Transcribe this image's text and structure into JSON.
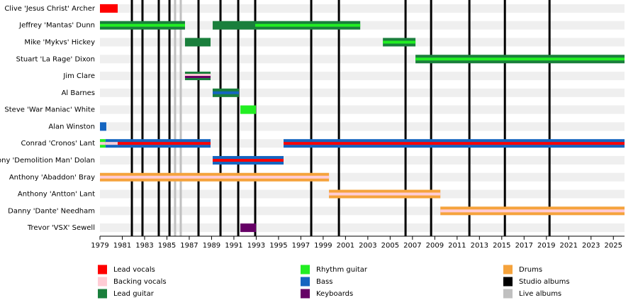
{
  "chart_data": {
    "type": "timeline",
    "xlim": [
      1979,
      2026
    ],
    "xticks": [
      1979,
      1981,
      1983,
      1985,
      1987,
      1989,
      1991,
      1993,
      1995,
      1997,
      1999,
      2001,
      2003,
      2005,
      2007,
      2009,
      2011,
      2013,
      2015,
      2017,
      2019,
      2021,
      2023,
      2025
    ],
    "roles": [
      {
        "name": "Lead vocals",
        "color": "#ff0000"
      },
      {
        "name": "Backing vocals",
        "color": "#ffccd5"
      },
      {
        "name": "Lead guitar",
        "color": "#1a7f3c"
      },
      {
        "name": "Rhythm guitar",
        "color": "#22ee22"
      },
      {
        "name": "Bass",
        "color": "#1565c0"
      },
      {
        "name": "Keyboards",
        "color": "#660066"
      },
      {
        "name": "Drums",
        "color": "#f5a33c"
      }
    ],
    "albums": [
      {
        "name": "Studio albums",
        "color": "#000000",
        "years": [
          1981.86,
          1982.81,
          1984.27,
          1985.23,
          1987.83,
          1989.8,
          1991.39,
          1992.91,
          1997.93,
          2000.41,
          2006.38,
          2008.67,
          2012.1,
          2015.28,
          2019.28
        ]
      },
      {
        "name": "Live albums",
        "color": "#c0c0c0",
        "years": [
          1985.73,
          1986.24
        ]
      }
    ],
    "members": [
      {
        "name": "Clive 'Jesus Christ' Archer",
        "periods": [
          {
            "start": 1979,
            "end": 1980.59,
            "roles": [
              "Lead vocals"
            ]
          }
        ]
      },
      {
        "name": "Jeffrey 'Mantas' Dunn",
        "periods": [
          {
            "start": 1979,
            "end": 1986.62,
            "roles": [
              "Lead guitar",
              "Rhythm guitar"
            ]
          },
          {
            "start": 1989.1,
            "end": 1992.91,
            "roles": [
              "Lead guitar"
            ]
          },
          {
            "start": 1992.91,
            "end": 2002.32,
            "roles": [
              "Lead guitar",
              "Rhythm guitar"
            ]
          }
        ]
      },
      {
        "name": "Mike 'Mykvs' Hickey",
        "periods": [
          {
            "start": 1986.62,
            "end": 1988.91,
            "roles": [
              "Lead guitar"
            ]
          },
          {
            "start": 2004.35,
            "end": 2007.27,
            "roles": [
              "Lead guitar",
              "Rhythm guitar"
            ]
          }
        ]
      },
      {
        "name": "Stuart 'La Rage' Dixon",
        "periods": [
          {
            "start": 2007.27,
            "end": 2026,
            "roles": [
              "Lead guitar",
              "Rhythm guitar"
            ]
          }
        ]
      },
      {
        "name": "Jim Clare",
        "periods": [
          {
            "start": 1986.62,
            "end": 1988.91,
            "roles": [
              "Lead guitar",
              "Backing vocals",
              "Keyboards"
            ]
          }
        ]
      },
      {
        "name": "Al Barnes",
        "periods": [
          {
            "start": 1989.1,
            "end": 1991.45,
            "roles": [
              "Lead guitar",
              "Bass"
            ]
          }
        ]
      },
      {
        "name": "Steve 'War Maniac' White",
        "periods": [
          {
            "start": 1991.58,
            "end": 1992.98,
            "roles": [
              "Rhythm guitar"
            ]
          }
        ]
      },
      {
        "name": "Alan Winston",
        "periods": [
          {
            "start": 1979,
            "end": 1979.57,
            "roles": [
              "Bass"
            ]
          }
        ]
      },
      {
        "name": "Conrad 'Cronos' Lant",
        "periods": [
          {
            "start": 1979,
            "end": 1979.5,
            "roles": [
              "Rhythm guitar",
              "Backing vocals"
            ]
          },
          {
            "start": 1979.5,
            "end": 1980.59,
            "roles": [
              "Bass",
              "Backing vocals"
            ]
          },
          {
            "start": 1980.59,
            "end": 1988.91,
            "roles": [
              "Bass",
              "Lead vocals"
            ]
          },
          {
            "start": 1995.45,
            "end": 2026,
            "roles": [
              "Bass",
              "Lead vocals"
            ]
          }
        ]
      },
      {
        "name": "Tony 'Demolition Man' Dolan",
        "periods": [
          {
            "start": 1989.1,
            "end": 1995.45,
            "roles": [
              "Bass",
              "Lead vocals"
            ]
          }
        ]
      },
      {
        "name": "Anthony 'Abaddon' Bray",
        "periods": [
          {
            "start": 1979,
            "end": 1999.52,
            "roles": [
              "Drums",
              "Backing vocals"
            ]
          }
        ]
      },
      {
        "name": "Anthony 'Antton' Lant",
        "periods": [
          {
            "start": 1999.52,
            "end": 2009.5,
            "roles": [
              "Drums",
              "Backing vocals"
            ]
          }
        ]
      },
      {
        "name": "Danny 'Dante' Needham",
        "periods": [
          {
            "start": 2009.5,
            "end": 2026,
            "roles": [
              "Drums",
              "Backing vocals"
            ]
          }
        ]
      },
      {
        "name": "Trevor 'VSX' Sewell",
        "periods": [
          {
            "start": 1991.58,
            "end": 1992.98,
            "roles": [
              "Keyboards"
            ]
          }
        ]
      }
    ]
  }
}
